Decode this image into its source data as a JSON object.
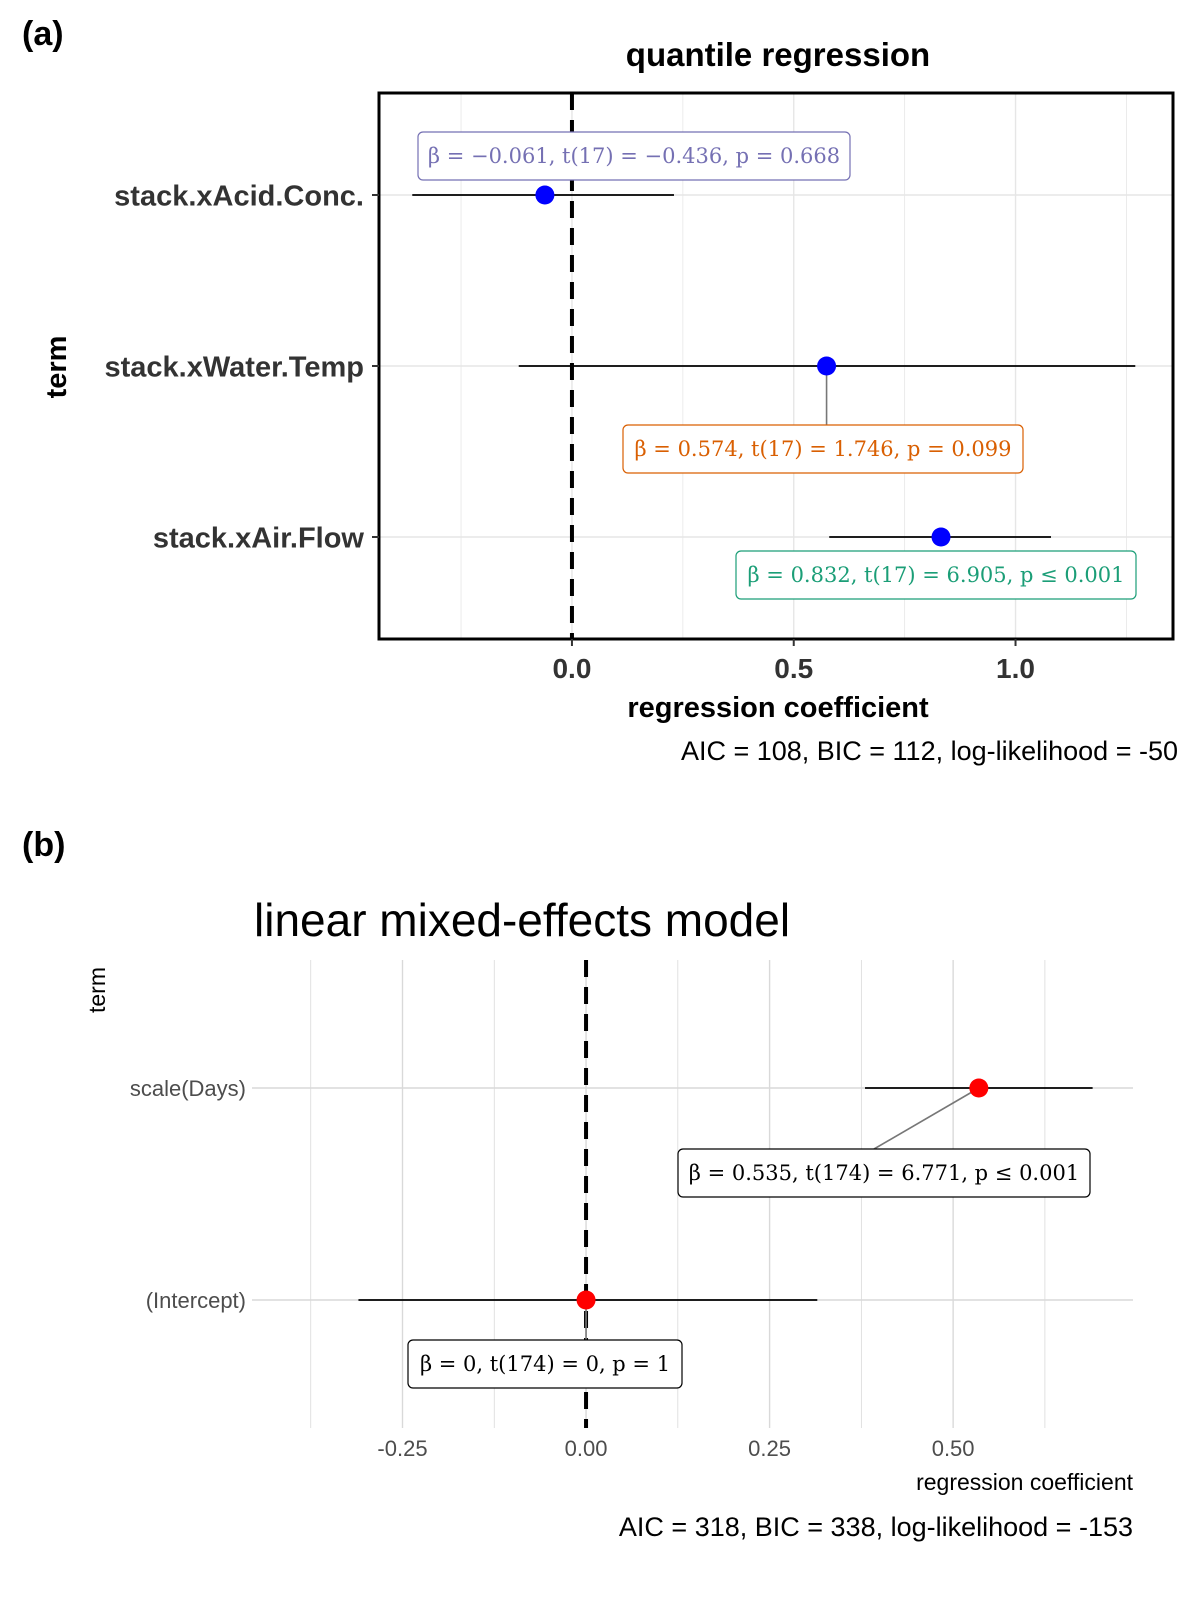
{
  "chart_data": [
    {
      "type": "scatter",
      "panel_tag": "(a)",
      "title": "quantile regression",
      "xlabel": "regression coefficient",
      "ylabel": "term",
      "xlim": [
        -0.435,
        1.355
      ],
      "xticks": [
        "0.0",
        "0.5",
        "1.0"
      ],
      "xtick_values": [
        0,
        0.5,
        1.0
      ],
      "grid": true,
      "panel_border": true,
      "reference_line": 0,
      "point_color": "#0000ff",
      "terms": [
        {
          "name": "stack.xAcid.Conc.",
          "estimate": -0.061,
          "ci": [
            -0.36,
            0.23
          ],
          "label": "β = −0.061,  t(17) = −0.436,  p = 0.668",
          "label_color": "#7570b3"
        },
        {
          "name": "stack.xWater.Temp",
          "estimate": 0.574,
          "ci": [
            -0.12,
            1.27
          ],
          "label": "β = 0.574,  t(17) = 1.746,  p = 0.099",
          "label_color": "#d95f02"
        },
        {
          "name": "stack.xAir.Flow",
          "estimate": 0.832,
          "ci": [
            0.58,
            1.08
          ],
          "label": "β = 0.832,  t(17) = 6.905,  p ≤ 0.001",
          "label_color": "#1b9e77"
        }
      ],
      "caption": "AIC = 108, BIC = 112, log-likelihood = -50"
    },
    {
      "type": "scatter",
      "panel_tag": "(b)",
      "title": "linear mixed-effects model",
      "xlabel": "regression coefficient",
      "ylabel": "term",
      "xlim": [
        -0.455,
        0.745
      ],
      "xticks": [
        "-0.25",
        "0.00",
        "0.25",
        "0.50"
      ],
      "xtick_values": [
        -0.25,
        0,
        0.25,
        0.5
      ],
      "grid": true,
      "panel_border": false,
      "reference_line": 0,
      "point_color": "#ff0000",
      "terms": [
        {
          "name": "scale(Days)",
          "estimate": 0.535,
          "ci": [
            0.38,
            0.69
          ],
          "label": "β = 0.535,  t(174) = 6.771,  p ≤ 0.001",
          "label_color": "#000000"
        },
        {
          "name": "(Intercept)",
          "estimate": 0,
          "ci": [
            -0.31,
            0.315
          ],
          "label": "β = 0,  t(174) = 0,  p = 1",
          "label_color": "#000000"
        }
      ],
      "caption": "AIC = 318, BIC = 338, log-likelihood = -153"
    }
  ]
}
